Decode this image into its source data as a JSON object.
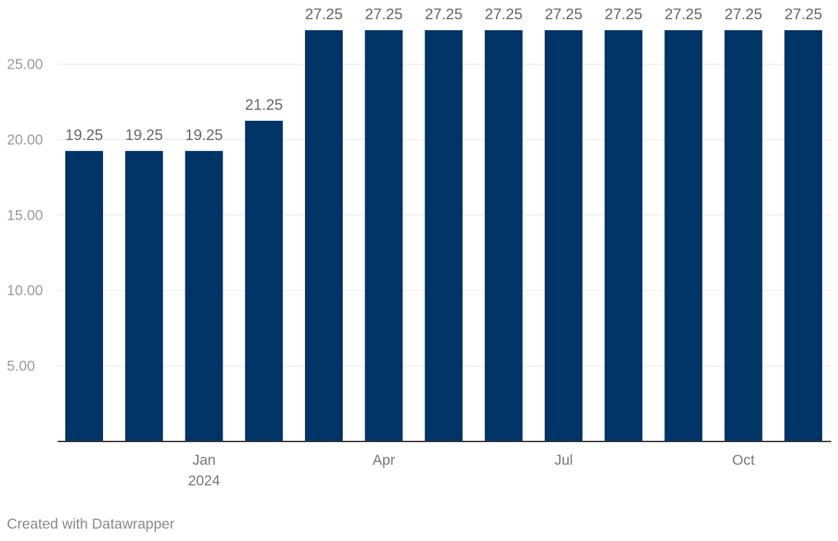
{
  "chart_data": {
    "type": "bar",
    "categories": [
      "2023-11",
      "2023-12",
      "2024-01",
      "2024-02",
      "2024-03",
      "2024-04",
      "2024-05",
      "2024-06",
      "2024-07",
      "2024-08",
      "2024-09",
      "2024-10",
      "2024-11"
    ],
    "values": [
      19.25,
      19.25,
      19.25,
      21.25,
      27.25,
      27.25,
      27.25,
      27.25,
      27.25,
      27.25,
      27.25,
      27.25,
      27.25
    ],
    "value_labels": [
      "19.25",
      "19.25",
      "19.25",
      "21.25",
      "27.25",
      "27.25",
      "27.25",
      "27.25",
      "27.25",
      "27.25",
      "27.25",
      "27.25",
      "27.25"
    ],
    "ylim": [
      0,
      27.25
    ],
    "yticks": [
      5,
      10,
      15,
      20,
      25
    ],
    "ytick_labels": [
      "5.00",
      "10.00",
      "15.00",
      "20.00",
      "25.00"
    ],
    "xtick_labels": [
      {
        "category": "2024-01",
        "lines": [
          "Jan",
          "2024"
        ]
      },
      {
        "category": "2024-04",
        "lines": [
          "Apr"
        ]
      },
      {
        "category": "2024-07",
        "lines": [
          "Jul"
        ]
      },
      {
        "category": "2024-10",
        "lines": [
          "Oct"
        ]
      }
    ],
    "grid": true,
    "bar_color": "#003366"
  },
  "footer": {
    "credit": "Created with Datawrapper"
  }
}
